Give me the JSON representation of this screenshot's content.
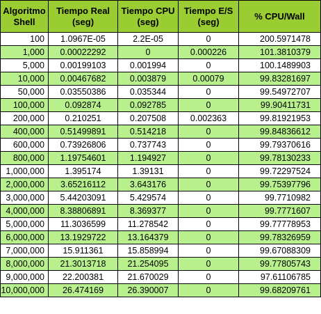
{
  "headers": [
    "Algoritmo Shell",
    "Tiempo Real (seg)",
    "Tiempo CPU (seg)",
    "Tiempo E/S (seg)",
    "% CPU/Wall"
  ],
  "colors": {
    "header_background": "#9acd32",
    "alternate_row_background": "#b7f08c",
    "row_background": "#ffffff",
    "border": "#000000"
  },
  "rows": [
    [
      "100",
      "1.0967E-05",
      "2.2E-05",
      "0",
      "200.5971478"
    ],
    [
      "1,000",
      "0.00022292",
      "0",
      "0.000226",
      "101.3810379"
    ],
    [
      "5,000",
      "0.00199103",
      "0.001994",
      "0",
      "100.1489903"
    ],
    [
      "10,000",
      "0.00467682",
      "0.003879",
      "0.00079",
      "99.83281697"
    ],
    [
      "50,000",
      "0.03550386",
      "0.035344",
      "0",
      "99.54972707"
    ],
    [
      "100,000",
      "0.092874",
      "0.092785",
      "0",
      "99.90411731"
    ],
    [
      "200,000",
      "0.210251",
      "0.207508",
      "0.002363",
      "99.81921953"
    ],
    [
      "400,000",
      "0.51499891",
      "0.514218",
      "0",
      "99.84836612"
    ],
    [
      "600,000",
      "0.73926806",
      "0.737743",
      "0",
      "99.79370616"
    ],
    [
      "800,000",
      "1.19754601",
      "1.194927",
      "0",
      "99.78130233"
    ],
    [
      "1,000,000",
      "1.395174",
      "1.39131",
      "0",
      "99.72297524"
    ],
    [
      "2,000,000",
      "3.65216112",
      "3.643176",
      "0",
      "99.75397796"
    ],
    [
      "3,000,000",
      "5.44203091",
      "5.429574",
      "0",
      "99.7710982"
    ],
    [
      "4,000,000",
      "8.38806891",
      "8.369377",
      "0",
      "99.7771607"
    ],
    [
      "5,000,000",
      "11.3036599",
      "11.278542",
      "0",
      "99.77778953"
    ],
    [
      "6,000,000",
      "13.1929722",
      "13.164379",
      "0",
      "99.78326959"
    ],
    [
      "7,000,000",
      "15.911361",
      "15.858994",
      "0",
      "99.67088309"
    ],
    [
      "8,000,000",
      "21.3013718",
      "21.254095",
      "0",
      "99.77805743"
    ],
    [
      "9,000,000",
      "22.200381",
      "21.670029",
      "0",
      "97.61106785"
    ],
    [
      "10,000,000",
      "26.474169",
      "26.390007",
      "0",
      "99.68209761"
    ]
  ]
}
